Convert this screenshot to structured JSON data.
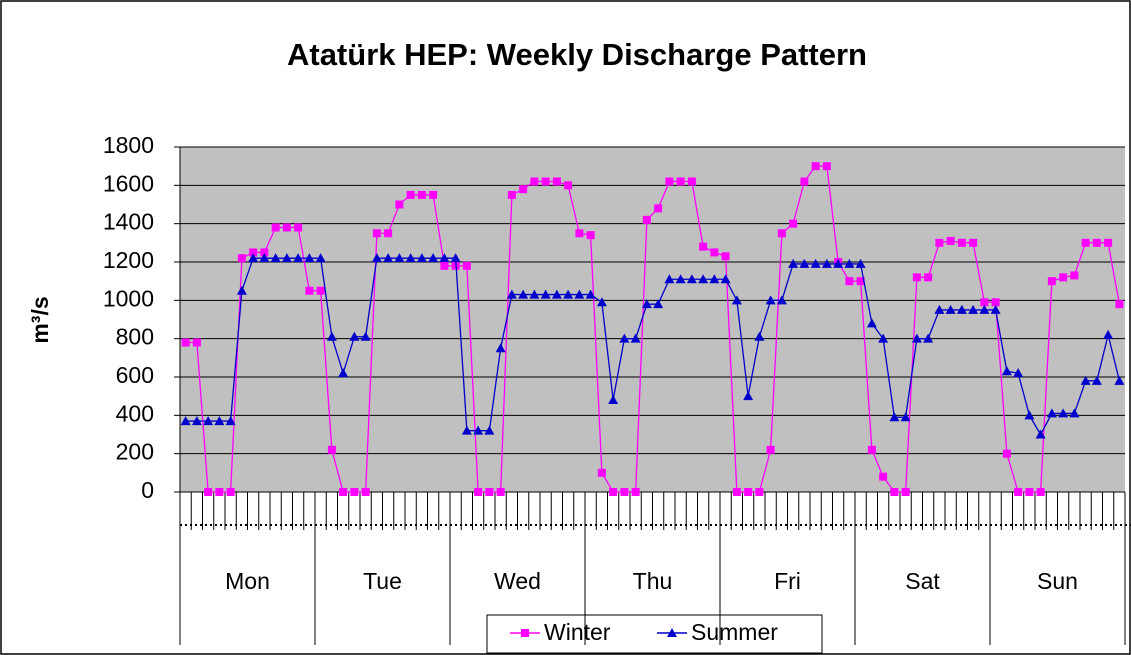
{
  "chart_data": {
    "type": "line",
    "title": "Atatürk HEP: Weekly Discharge Pattern",
    "y_label": "m³/s",
    "groups": [
      "Mon",
      "Tue",
      "Wed",
      "Thu",
      "Fri",
      "Sat",
      "Sun"
    ],
    "points_per_group": 12,
    "series": [
      {
        "name": "Winter",
        "color": "#ff00ff",
        "marker": "square",
        "values": [
          780,
          780,
          0,
          0,
          0,
          1220,
          1250,
          1250,
          1380,
          1380,
          1380,
          1050,
          1050,
          220,
          0,
          0,
          0,
          1350,
          1350,
          1500,
          1550,
          1550,
          1550,
          1180,
          1180,
          1180,
          0,
          0,
          0,
          1550,
          1580,
          1620,
          1620,
          1620,
          1600,
          1350,
          1340,
          100,
          0,
          0,
          0,
          1420,
          1480,
          1620,
          1620,
          1620,
          1280,
          1250,
          1230,
          0,
          0,
          0,
          220,
          1350,
          1400,
          1620,
          1700,
          1700,
          1200,
          1100,
          1100,
          220,
          80,
          0,
          0,
          1120,
          1120,
          1300,
          1310,
          1300,
          1300,
          990,
          990,
          200,
          0,
          0,
          0,
          1100,
          1120,
          1130,
          1300,
          1300,
          1300,
          980
        ]
      },
      {
        "name": "Summer",
        "color": "#0000cc",
        "marker": "triangle",
        "values": [
          370,
          370,
          370,
          370,
          370,
          1050,
          1220,
          1220,
          1220,
          1220,
          1220,
          1220,
          1220,
          810,
          620,
          810,
          810,
          1220,
          1220,
          1220,
          1220,
          1220,
          1220,
          1220,
          1220,
          320,
          320,
          320,
          750,
          1030,
          1030,
          1030,
          1030,
          1030,
          1030,
          1030,
          1030,
          990,
          480,
          800,
          800,
          980,
          980,
          1110,
          1110,
          1110,
          1110,
          1110,
          1110,
          1000,
          500,
          810,
          1000,
          1000,
          1190,
          1190,
          1190,
          1190,
          1190,
          1190,
          1190,
          880,
          800,
          390,
          390,
          800,
          800,
          950,
          950,
          950,
          950,
          950,
          950,
          630,
          620,
          400,
          300,
          410,
          410,
          410,
          580,
          580,
          820,
          580
        ]
      }
    ],
    "ylim": [
      0,
      1800
    ],
    "yticks": [
      0,
      200,
      400,
      600,
      800,
      1000,
      1200,
      1400,
      1600,
      1800
    ],
    "grid": true,
    "plot_background": "#c0c0c0",
    "legend": "bottom"
  }
}
